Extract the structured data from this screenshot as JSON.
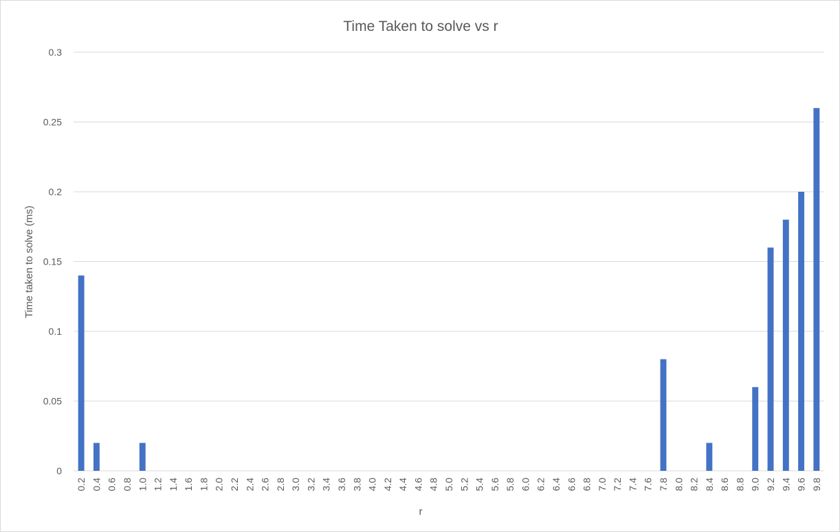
{
  "chart_data": {
    "type": "bar",
    "title": "Time Taken to solve vs r",
    "xlabel": "r",
    "ylabel": "Time taken to solve (ms)",
    "categories": [
      "0.2",
      "0.4",
      "0.6",
      "0.8",
      "1.0",
      "1.2",
      "1.4",
      "1.6",
      "1.8",
      "2.0",
      "2.2",
      "2.4",
      "2.6",
      "2.8",
      "3.0",
      "3.2",
      "3.4",
      "3.6",
      "3.8",
      "4.0",
      "4.2",
      "4.4",
      "4.6",
      "4.8",
      "5.0",
      "5.2",
      "5.4",
      "5.6",
      "5.8",
      "6.0",
      "6.2",
      "6.4",
      "6.6",
      "6.8",
      "7.0",
      "7.2",
      "7.4",
      "7.6",
      "7.8",
      "8.0",
      "8.2",
      "8.4",
      "8.6",
      "8.8",
      "9.0",
      "9.2",
      "9.4",
      "9.6",
      "9.8"
    ],
    "values": [
      0.14,
      0.02,
      0,
      0,
      0.02,
      0,
      0,
      0,
      0,
      0,
      0,
      0,
      0,
      0,
      0,
      0,
      0,
      0,
      0,
      0,
      0,
      0,
      0,
      0,
      0,
      0,
      0,
      0,
      0,
      0,
      0,
      0,
      0,
      0,
      0,
      0,
      0,
      0,
      0.08,
      0,
      0,
      0.02,
      0,
      0,
      0.06,
      0.16,
      0.18,
      0.2,
      0.26
    ],
    "ylim": [
      0,
      0.3
    ],
    "yticks": [
      "0",
      "0.05",
      "0.1",
      "0.15",
      "0.2",
      "0.25",
      "0.3"
    ],
    "grid": true,
    "legend": "none",
    "colors": {
      "bar": "#4472c4",
      "grid": "#d9d9d9",
      "text": "#595959"
    }
  }
}
